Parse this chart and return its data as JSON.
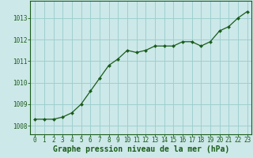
{
  "x": [
    0,
    1,
    2,
    3,
    4,
    5,
    6,
    7,
    8,
    9,
    10,
    11,
    12,
    13,
    14,
    15,
    16,
    17,
    18,
    19,
    20,
    21,
    22,
    23
  ],
  "y": [
    1008.3,
    1008.3,
    1008.3,
    1008.4,
    1008.6,
    1009.0,
    1009.6,
    1010.2,
    1010.8,
    1011.1,
    1011.5,
    1011.4,
    1011.5,
    1011.7,
    1011.7,
    1011.7,
    1011.9,
    1011.9,
    1011.7,
    1011.9,
    1012.4,
    1012.6,
    1013.0,
    1013.3
  ],
  "line_color": "#1a5c1a",
  "marker_color": "#1a5c1a",
  "bg_color": "#cce8e8",
  "grid_color": "#99cccc",
  "xlabel": "Graphe pression niveau de la mer (hPa)",
  "xlabel_fontsize": 7.0,
  "xlabel_color": "#1a5c1a",
  "ylabel_ticks": [
    1008,
    1009,
    1010,
    1011,
    1012,
    1013
  ],
  "ylim": [
    1007.6,
    1013.8
  ],
  "xlim": [
    -0.5,
    23.5
  ],
  "xticks": [
    0,
    1,
    2,
    3,
    4,
    5,
    6,
    7,
    8,
    9,
    10,
    11,
    12,
    13,
    14,
    15,
    16,
    17,
    18,
    19,
    20,
    21,
    22,
    23
  ],
  "tick_fontsize": 5.5,
  "tick_color": "#1a5c1a"
}
